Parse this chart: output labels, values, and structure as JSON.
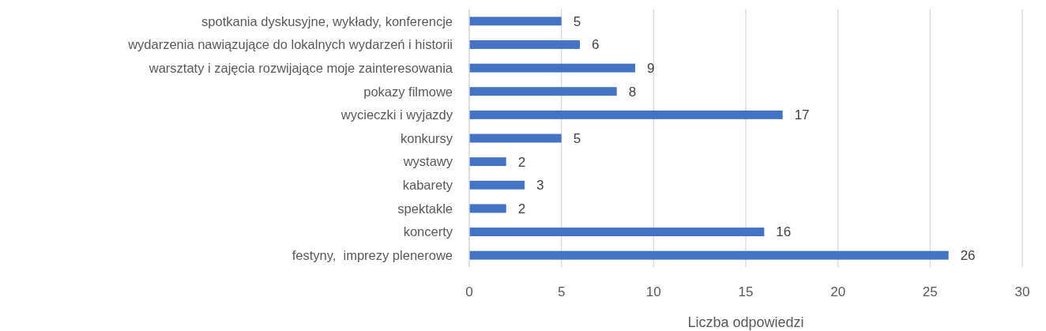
{
  "chart_data": {
    "type": "bar",
    "orientation": "horizontal",
    "categories": [
      "spotkania dyskusyjne, wykłady, konferencje",
      "wydarzenia nawiązujące do lokalnych wydarzeń i historii",
      "warsztaty i zajęcia rozwijające moje zainteresowania",
      "pokazy filmowe",
      "wycieczki i wyjazdy",
      "konkursy",
      "wystawy",
      "kabarety",
      "spektakle",
      "koncerty",
      "festyny,  imprezy plenerowe"
    ],
    "values": [
      5,
      6,
      9,
      8,
      17,
      5,
      2,
      3,
      2,
      16,
      26
    ],
    "color": "#4472c4",
    "xlabel": "Liczba odpowiedzi",
    "xlim": [
      0,
      30
    ],
    "xticks": [
      0,
      5,
      10,
      15,
      20,
      25,
      30
    ],
    "grid": "x",
    "data_labels": true
  }
}
